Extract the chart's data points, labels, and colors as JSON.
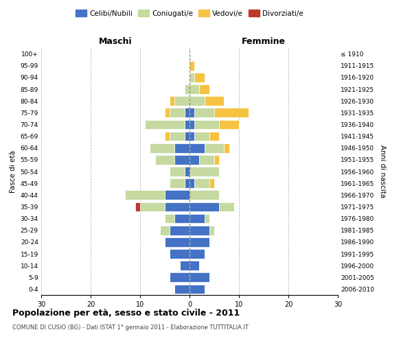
{
  "age_groups": [
    "0-4",
    "5-9",
    "10-14",
    "15-19",
    "20-24",
    "25-29",
    "30-34",
    "35-39",
    "40-44",
    "45-49",
    "50-54",
    "55-59",
    "60-64",
    "65-69",
    "70-74",
    "75-79",
    "80-84",
    "85-89",
    "90-94",
    "95-99",
    "100+"
  ],
  "birth_years": [
    "2006-2010",
    "2001-2005",
    "1996-2000",
    "1991-1995",
    "1986-1990",
    "1981-1985",
    "1976-1980",
    "1971-1975",
    "1966-1970",
    "1961-1965",
    "1956-1960",
    "1951-1955",
    "1946-1950",
    "1941-1945",
    "1936-1940",
    "1931-1935",
    "1926-1930",
    "1921-1925",
    "1916-1920",
    "1911-1915",
    "≤ 1910"
  ],
  "male": {
    "celibi": [
      3,
      4,
      2,
      4,
      5,
      4,
      3,
      5,
      5,
      1,
      1,
      3,
      3,
      1,
      1,
      1,
      0,
      0,
      0,
      0,
      0
    ],
    "coniugati": [
      0,
      0,
      0,
      0,
      0,
      2,
      2,
      5,
      8,
      3,
      3,
      4,
      5,
      3,
      8,
      3,
      3,
      1,
      0,
      0,
      0
    ],
    "vedovi": [
      0,
      0,
      0,
      0,
      0,
      0,
      0,
      0,
      0,
      0,
      0,
      0,
      0,
      1,
      0,
      1,
      1,
      0,
      0,
      0,
      0
    ],
    "divorziati": [
      0,
      0,
      0,
      0,
      0,
      0,
      0,
      1,
      0,
      0,
      0,
      0,
      0,
      0,
      0,
      0,
      0,
      0,
      0,
      0,
      0
    ]
  },
  "female": {
    "nubili": [
      3,
      4,
      2,
      3,
      4,
      4,
      3,
      6,
      0,
      1,
      0,
      2,
      3,
      1,
      1,
      1,
      0,
      0,
      0,
      0,
      0
    ],
    "coniugate": [
      0,
      0,
      0,
      0,
      0,
      1,
      1,
      3,
      6,
      3,
      6,
      3,
      4,
      3,
      5,
      4,
      3,
      2,
      1,
      0,
      0
    ],
    "vedove": [
      0,
      0,
      0,
      0,
      0,
      0,
      0,
      0,
      0,
      1,
      0,
      1,
      1,
      2,
      4,
      7,
      4,
      2,
      2,
      1,
      0
    ],
    "divorziate": [
      0,
      0,
      0,
      0,
      0,
      0,
      0,
      0,
      0,
      0,
      0,
      0,
      0,
      0,
      0,
      0,
      0,
      0,
      0,
      0,
      0
    ]
  },
  "colors": {
    "celibi": "#4472c4",
    "coniugati": "#c5d9a0",
    "vedovi": "#f5c242",
    "divorziati": "#c0382b"
  },
  "title": "Popolazione per età, sesso e stato civile - 2011",
  "subtitle": "COMUNE DI CUSIO (BG) - Dati ISTAT 1° gennaio 2011 - Elaborazione TUTTITALIA.IT",
  "xlabel_left": "Maschi",
  "xlabel_right": "Femmine",
  "ylabel_left": "Fasce di età",
  "ylabel_right": "Anni di nascita",
  "xlim": 30,
  "legend_labels": [
    "Celibi/Nubili",
    "Coniugati/e",
    "Vedovi/e",
    "Divorziati/e"
  ],
  "background_color": "#ffffff",
  "grid_color": "#bbbbbb"
}
